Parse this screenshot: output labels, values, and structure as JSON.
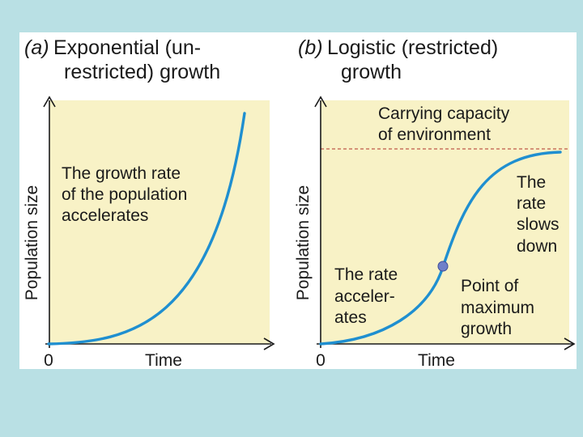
{
  "panel_a": {
    "title": [
      "(a)",
      "Exponential (un-",
      "restricted) growth"
    ],
    "y_label": "Population size",
    "x_label": "Time",
    "origin_label": "0",
    "annotation": [
      "The growth rate",
      "of the population",
      "accelerates"
    ]
  },
  "panel_b": {
    "title": [
      "(b)",
      "Logistic (restricted)",
      "growth"
    ],
    "y_label": "Population size",
    "x_label": "Time",
    "origin_label": "0",
    "capacity_label": [
      "Carrying capacity",
      "of environment"
    ],
    "annotation_right": [
      "The",
      "rate",
      "slows",
      "down"
    ],
    "annotation_left": [
      "The rate",
      "acceler-",
      "ates"
    ],
    "point_label": [
      "Point of",
      "maximum",
      "growth"
    ]
  },
  "colors": {
    "plot_background": "#f8f2c6",
    "curve": "#1f8fd0",
    "capacity_line": "#b0312a",
    "page_background": "#b9e0e4"
  }
}
